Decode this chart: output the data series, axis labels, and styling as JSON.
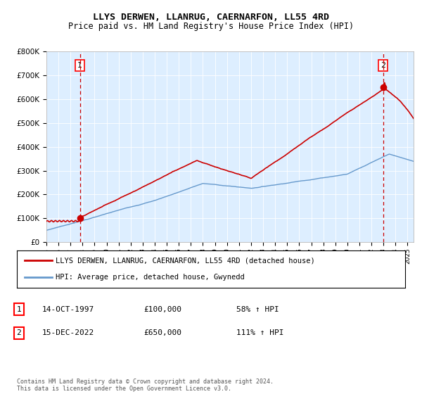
{
  "title": "LLYS DERWEN, LLANRUG, CAERNARFON, LL55 4RD",
  "subtitle": "Price paid vs. HM Land Registry's House Price Index (HPI)",
  "legend_label1": "LLYS DERWEN, LLANRUG, CAERNARFON, LL55 4RD (detached house)",
  "legend_label2": "HPI: Average price, detached house, Gwynedd",
  "footer": "Contains HM Land Registry data © Crown copyright and database right 2024.\nThis data is licensed under the Open Government Licence v3.0.",
  "transaction1_date": "14-OCT-1997",
  "transaction1_price": "£100,000",
  "transaction1_hpi": "58% ↑ HPI",
  "transaction2_date": "15-DEC-2022",
  "transaction2_price": "£650,000",
  "transaction2_hpi": "111% ↑ HPI",
  "sale1_year": 1997.79,
  "sale1_price": 100000,
  "sale2_year": 2022.96,
  "sale2_price": 650000,
  "hpi_color": "#6699cc",
  "price_color": "#cc0000",
  "dashed_line_color": "#cc0000",
  "plot_bg_color": "#ddeeff",
  "fig_bg_color": "#ffffff",
  "grid_color": "#ffffff",
  "ylim": [
    0,
    800000
  ],
  "xlim_start": 1995.0,
  "xlim_end": 2025.5
}
